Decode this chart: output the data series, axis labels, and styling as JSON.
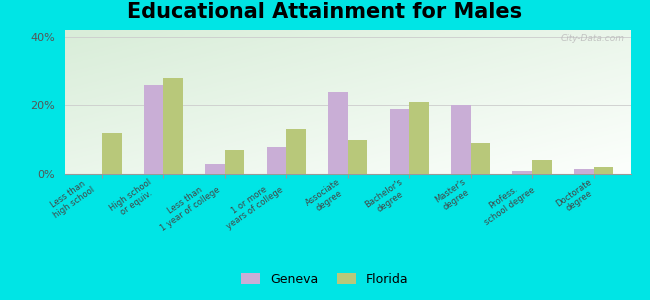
{
  "title": "Educational Attainment for Males",
  "categories": [
    "Less than\nhigh school",
    "High school\nor equiv.",
    "Less than\n1 year of college",
    "1 or more\nyears of college",
    "Associate\ndegree",
    "Bachelor's\ndegree",
    "Master's\ndegree",
    "Profess.\nschool degree",
    "Doctorate\ndegree"
  ],
  "geneva_values": [
    0,
    26,
    3,
    8,
    24,
    19,
    20,
    1,
    1.5
  ],
  "florida_values": [
    12,
    28,
    7,
    13,
    10,
    21,
    9,
    4,
    2
  ],
  "geneva_color": "#c9aed6",
  "florida_color": "#b8c87a",
  "bg_top_left": "#d8edd8",
  "bg_bottom_right": "#f0faf0",
  "outer_background": "#00e5e5",
  "ylim": [
    0,
    42
  ],
  "ytick_labels": [
    "0%",
    "20%",
    "40%"
  ],
  "title_fontsize": 15,
  "legend_labels": [
    "Geneva",
    "Florida"
  ],
  "watermark": "City-Data.com"
}
